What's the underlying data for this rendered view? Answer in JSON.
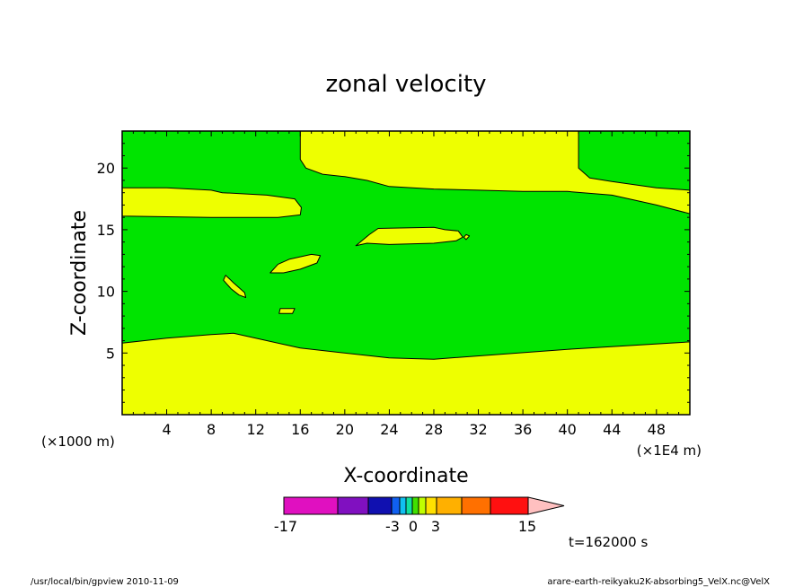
{
  "chart_data": {
    "type": "filled-contour",
    "title": "zonal velocity",
    "xlabel": "X-coordinate",
    "ylabel": "Z-coordinate",
    "x_unit_left": "(×1000 m)",
    "x_unit_right": "(×1E4 m)",
    "xlim": [
      0,
      51
    ],
    "ylim": [
      0,
      23
    ],
    "x_ticks": [
      4,
      8,
      12,
      16,
      20,
      24,
      28,
      32,
      36,
      40,
      44,
      48
    ],
    "y_ticks": [
      5,
      10,
      15,
      20
    ],
    "levels": [
      -17,
      -3,
      0,
      3,
      15
    ],
    "colorbar": {
      "labels": [
        "-17",
        "-3",
        "0",
        "3",
        "15"
      ],
      "colors": [
        "#e010c0",
        "#8010c0",
        "#1010b0",
        "#1060f0",
        "#10c0f0",
        "#10e0a0",
        "#40e000",
        "#c0ff00",
        "#ffe000",
        "#ffb000",
        "#ff7000",
        "#ff1010",
        "#ff8070",
        "#ffc0c0"
      ]
    },
    "field_colors": {
      "green": "#00e400",
      "yellow": "#eeff00"
    },
    "regions": [
      {
        "color": "yellow",
        "points": [
          [
            0,
            0
          ],
          [
            51,
            0
          ],
          [
            51,
            5.9
          ],
          [
            40,
            5.3
          ],
          [
            28,
            4.5
          ],
          [
            24,
            4.6
          ],
          [
            16,
            5.4
          ],
          [
            10,
            6.6
          ],
          [
            8,
            6.5
          ],
          [
            4,
            6.2
          ],
          [
            0,
            5.8
          ]
        ]
      },
      {
        "color": "yellow",
        "points": [
          [
            0,
            16.1
          ],
          [
            8,
            16.0
          ],
          [
            14,
            16.0
          ],
          [
            16,
            16.2
          ],
          [
            16.1,
            16.8
          ],
          [
            15.5,
            17.5
          ],
          [
            13,
            17.8
          ],
          [
            9,
            18
          ],
          [
            8,
            18.2
          ],
          [
            4,
            18.4
          ],
          [
            0,
            18.4
          ]
        ]
      },
      {
        "color": "yellow",
        "points": [
          [
            16,
            23
          ],
          [
            16,
            20.7
          ],
          [
            16.5,
            20
          ],
          [
            18,
            19.5
          ],
          [
            20,
            19.3
          ],
          [
            22,
            19.0
          ],
          [
            24,
            18.5
          ],
          [
            28,
            18.3
          ],
          [
            32,
            18.2
          ],
          [
            36,
            18.1
          ],
          [
            40,
            18.1
          ],
          [
            44,
            17.8
          ],
          [
            48,
            17.0
          ],
          [
            51,
            16.3
          ],
          [
            51,
            18.2
          ],
          [
            48,
            18.4
          ],
          [
            44,
            18.9
          ],
          [
            42,
            19.2
          ],
          [
            41,
            20
          ],
          [
            41,
            23
          ]
        ]
      },
      {
        "color": "yellow",
        "points": [
          [
            21,
            13.7
          ],
          [
            22.2,
            14.6
          ],
          [
            23,
            15.1
          ],
          [
            28,
            15.2
          ],
          [
            29,
            15.0
          ],
          [
            30.2,
            14.9
          ],
          [
            30.6,
            14.4
          ],
          [
            30,
            14.1
          ],
          [
            28,
            13.9
          ],
          [
            24,
            13.8
          ],
          [
            22,
            13.9
          ]
        ]
      },
      {
        "color": "yellow",
        "points": [
          [
            30.9,
            14.2
          ],
          [
            31.2,
            14.5
          ],
          [
            30.9,
            14.6
          ],
          [
            30.7,
            14.4
          ]
        ]
      },
      {
        "color": "yellow",
        "points": [
          [
            13.3,
            11.5
          ],
          [
            14,
            12.2
          ],
          [
            15,
            12.6
          ],
          [
            17,
            13
          ],
          [
            17.8,
            12.9
          ],
          [
            17.5,
            12.3
          ],
          [
            16,
            11.8
          ],
          [
            14.5,
            11.5
          ]
        ]
      },
      {
        "color": "yellow",
        "points": [
          [
            9.3,
            11.3
          ],
          [
            10,
            10.7
          ],
          [
            11,
            9.9
          ],
          [
            11.1,
            9.5
          ],
          [
            10.5,
            9.7
          ],
          [
            9.8,
            10.2
          ],
          [
            9.1,
            10.9
          ]
        ]
      },
      {
        "color": "yellow",
        "points": [
          [
            14.2,
            8.6
          ],
          [
            15.5,
            8.6
          ],
          [
            15.3,
            8.2
          ],
          [
            14.1,
            8.2
          ]
        ]
      }
    ],
    "annotation_time": "t=162000 s"
  },
  "footer": {
    "left": "/usr/local/bin/gpview  2010-11-09",
    "right": "arare-earth-reikyaku2K-absorbing5_VelX.nc@VelX"
  }
}
